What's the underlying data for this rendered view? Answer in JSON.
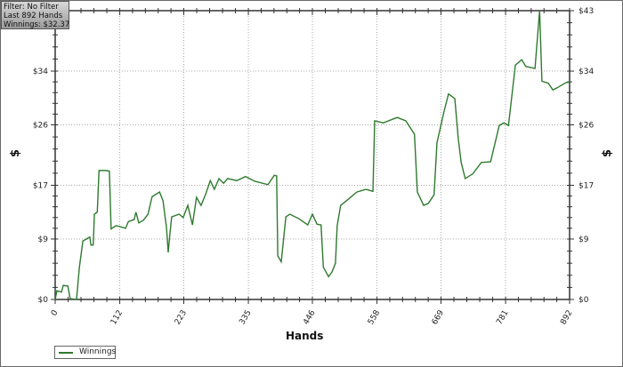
{
  "info_box": {
    "filter": "Filter: No Filter",
    "last": "Last  892 Hands",
    "winnings": "Winnings: $32.37"
  },
  "chart_data": {
    "type": "line",
    "xlabel": "Hands",
    "ylabel": "$",
    "ylabel_right": "$",
    "xlim": [
      0,
      892
    ],
    "ylim": [
      0,
      43
    ],
    "x_ticks": [
      0,
      112,
      223,
      335,
      446,
      558,
      669,
      781,
      892
    ],
    "y_ticks": [
      0,
      9,
      17,
      26,
      34,
      43
    ],
    "y_tick_labels": [
      "$0",
      "$9",
      "$17",
      "$26",
      "$34",
      "$43"
    ],
    "grid": true,
    "legend_position": "bottom-left",
    "series": [
      {
        "name": "Winnings",
        "color": "#2f7a2f",
        "points": [
          [
            0,
            0
          ],
          [
            3,
            1.3
          ],
          [
            11,
            1.1
          ],
          [
            14,
            2.1
          ],
          [
            22,
            2.0
          ],
          [
            26,
            0.1
          ],
          [
            37,
            0
          ],
          [
            42,
            4.8
          ],
          [
            48,
            8.7
          ],
          [
            60,
            9.3
          ],
          [
            62,
            8.1
          ],
          [
            66,
            8.1
          ],
          [
            68,
            12.7
          ],
          [
            73,
            13.0
          ],
          [
            76,
            19.2
          ],
          [
            88,
            19.2
          ],
          [
            94,
            19.1
          ],
          [
            97,
            10.5
          ],
          [
            106,
            11.0
          ],
          [
            122,
            10.6
          ],
          [
            127,
            11.6
          ],
          [
            137,
            11.9
          ],
          [
            140,
            13.0
          ],
          [
            145,
            11.4
          ],
          [
            153,
            11.8
          ],
          [
            161,
            12.7
          ],
          [
            168,
            15.3
          ],
          [
            181,
            16.0
          ],
          [
            187,
            14.7
          ],
          [
            193,
            10.7
          ],
          [
            196,
            7.0
          ],
          [
            199,
            9.8
          ],
          [
            202,
            12.3
          ],
          [
            215,
            12.7
          ],
          [
            222,
            12.2
          ],
          [
            230,
            14.0
          ],
          [
            238,
            11.1
          ],
          [
            245,
            15.2
          ],
          [
            253,
            14.0
          ],
          [
            261,
            15.7
          ],
          [
            269,
            17.7
          ],
          [
            276,
            16.4
          ],
          [
            284,
            18.0
          ],
          [
            292,
            17.3
          ],
          [
            299,
            18.0
          ],
          [
            315,
            17.7
          ],
          [
            330,
            18.3
          ],
          [
            346,
            17.6
          ],
          [
            369,
            17.1
          ],
          [
            380,
            18.5
          ],
          [
            384,
            18.4
          ],
          [
            386,
            6.5
          ],
          [
            392,
            5.6
          ],
          [
            400,
            12.3
          ],
          [
            407,
            12.7
          ],
          [
            423,
            12.0
          ],
          [
            438,
            11.1
          ],
          [
            446,
            12.7
          ],
          [
            454,
            11.2
          ],
          [
            461,
            11.1
          ],
          [
            465,
            4.8
          ],
          [
            474,
            3.4
          ],
          [
            480,
            4.1
          ],
          [
            486,
            5.4
          ],
          [
            489,
            11.0
          ],
          [
            495,
            14.0
          ],
          [
            505,
            14.7
          ],
          [
            523,
            16.0
          ],
          [
            539,
            16.4
          ],
          [
            551,
            16.1
          ],
          [
            554,
            26.6
          ],
          [
            569,
            26.3
          ],
          [
            593,
            27.1
          ],
          [
            608,
            26.6
          ],
          [
            623,
            24.6
          ],
          [
            628,
            16.0
          ],
          [
            639,
            14.0
          ],
          [
            647,
            14.3
          ],
          [
            657,
            15.6
          ],
          [
            662,
            23.3
          ],
          [
            674,
            27.9
          ],
          [
            682,
            30.6
          ],
          [
            693,
            29.9
          ],
          [
            699,
            23.9
          ],
          [
            704,
            20.4
          ],
          [
            711,
            18.0
          ],
          [
            724,
            18.7
          ],
          [
            739,
            20.4
          ],
          [
            755,
            20.5
          ],
          [
            770,
            25.9
          ],
          [
            778,
            26.3
          ],
          [
            786,
            25.9
          ],
          [
            798,
            34.9
          ],
          [
            809,
            35.7
          ],
          [
            816,
            34.7
          ],
          [
            832,
            34.4
          ],
          [
            840,
            43.0
          ],
          [
            844,
            32.5
          ],
          [
            855,
            32.2
          ],
          [
            863,
            31.2
          ],
          [
            870,
            31.5
          ],
          [
            886,
            32.3
          ],
          [
            892,
            32.37
          ]
        ]
      }
    ]
  }
}
